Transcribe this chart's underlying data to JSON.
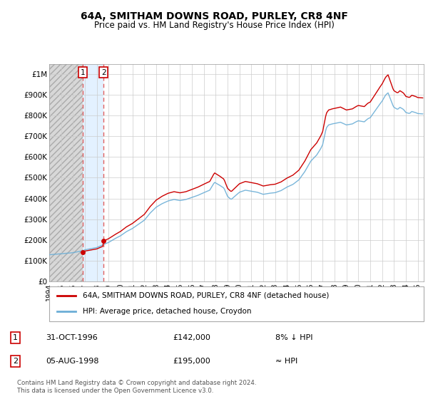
{
  "title": "64A, SMITHAM DOWNS ROAD, PURLEY, CR8 4NF",
  "subtitle": "Price paid vs. HM Land Registry's House Price Index (HPI)",
  "legend_line1": "64A, SMITHAM DOWNS ROAD, PURLEY, CR8 4NF (detached house)",
  "legend_line2": "HPI: Average price, detached house, Croydon",
  "transaction1_label": "1",
  "transaction1_date": "31-OCT-1996",
  "transaction1_price": "£142,000",
  "transaction1_hpi": "8% ↓ HPI",
  "transaction2_label": "2",
  "transaction2_date": "05-AUG-1998",
  "transaction2_price": "£195,000",
  "transaction2_hpi": "≈ HPI",
  "footer": "Contains HM Land Registry data © Crown copyright and database right 2024.\nThis data is licensed under the Open Government Licence v3.0.",
  "hpi_color": "#6baed6",
  "price_color": "#cc0000",
  "marker_color": "#cc0000",
  "dashed_color": "#e06060",
  "ylim": [
    0,
    1050000
  ],
  "yticks": [
    0,
    100000,
    200000,
    300000,
    400000,
    500000,
    600000,
    700000,
    800000,
    900000,
    1000000
  ],
  "ytick_labels": [
    "£0",
    "£100K",
    "£200K",
    "£300K",
    "£400K",
    "£500K",
    "£600K",
    "£700K",
    "£800K",
    "£900K",
    "£1M"
  ],
  "vline1_x": 1996.833,
  "vline2_x": 1998.583,
  "price_paid_y1": 142000,
  "price_paid_y2": 195000,
  "xlim_start": 1994.0,
  "xlim_end": 2025.5
}
